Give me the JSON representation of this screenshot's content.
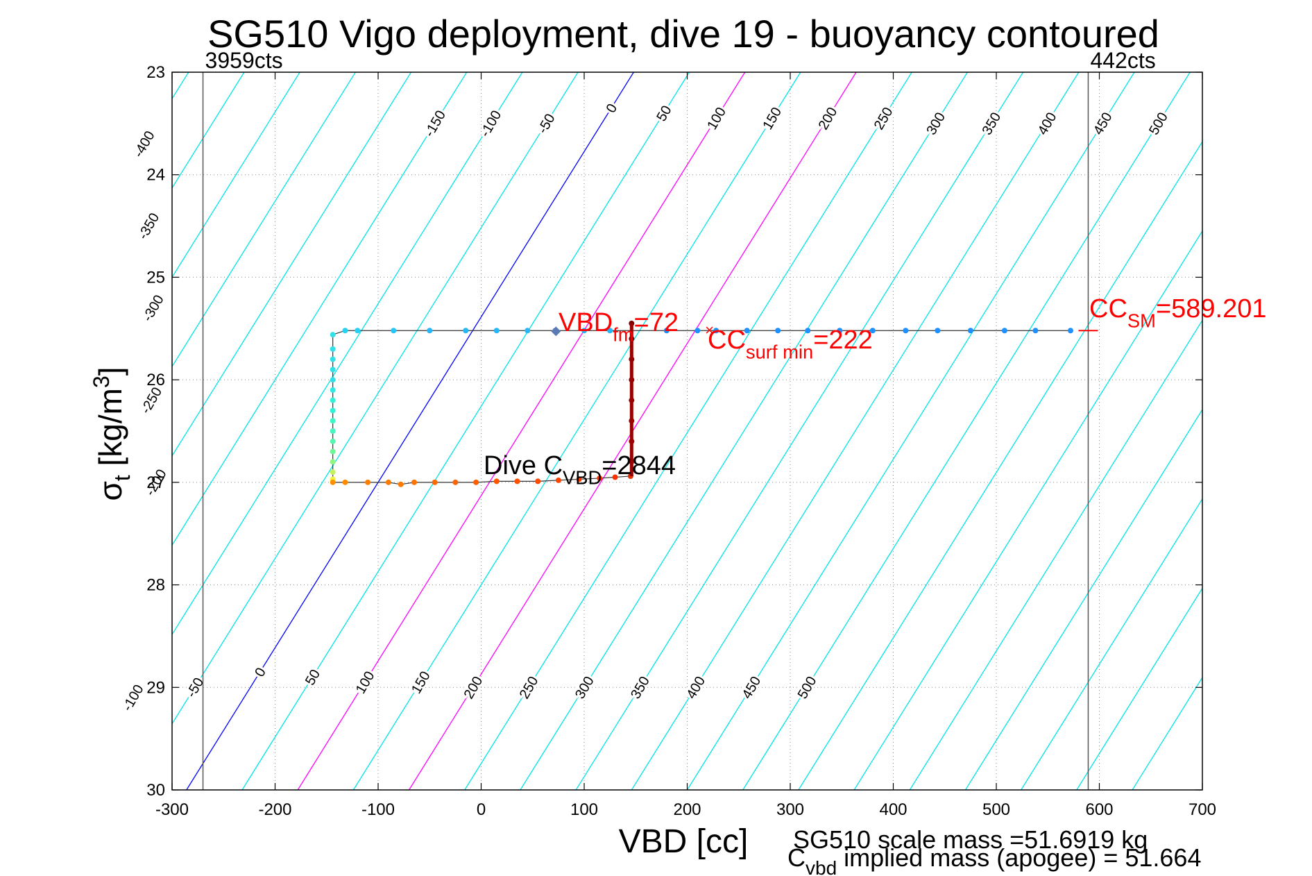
{
  "chart_data": {
    "type": "line",
    "title": "SG510 Vigo deployment, dive 19 - buoyancy contoured",
    "xlabel": "VBD [cc]",
    "ylabel_main": "σ",
    "ylabel_sub": "t",
    "ylabel_units": " [kg/m",
    "ylabel_sup": "3",
    "ylabel_close": "]",
    "xlim": [
      -300,
      700
    ],
    "ylim": [
      23,
      30
    ],
    "y_reversed": true,
    "grid": true,
    "xticks": [
      -300,
      -200,
      -100,
      0,
      100,
      200,
      300,
      400,
      500,
      600,
      700
    ],
    "yticks": [
      23,
      24,
      25,
      26,
      27,
      28,
      29,
      30
    ],
    "xtick_labels": [
      "-300",
      "-200",
      "-100",
      "0",
      "100",
      "200",
      "300",
      "400",
      "500",
      "600",
      "700"
    ],
    "ytick_labels": [
      "23",
      "24",
      "25",
      "26",
      "27",
      "28",
      "29",
      "30"
    ],
    "contours": {
      "slope_cc_per_sigma": 24,
      "levels": [
        -400,
        -350,
        -300,
        -250,
        -200,
        -150,
        -100,
        -50,
        0,
        50,
        100,
        150,
        200,
        250,
        300,
        350,
        400,
        450,
        500
      ],
      "zero_vbd_at_sigma23": 148,
      "highlight_zero": "#0000ff",
      "highlight_magenta": [
        100,
        200
      ],
      "color": "#00e5e5",
      "top_labels": [
        {
          "level": -400,
          "sigma": 23.7
        },
        {
          "level": -150,
          "sigma": 23.5
        },
        {
          "level": -100,
          "sigma": 23.5
        },
        {
          "level": -50,
          "sigma": 23.5
        },
        {
          "level": 0,
          "sigma": 23.35
        },
        {
          "level": 50,
          "sigma": 23.4
        },
        {
          "level": 100,
          "sigma": 23.45
        },
        {
          "level": 150,
          "sigma": 23.45
        },
        {
          "level": 200,
          "sigma": 23.45
        },
        {
          "level": 250,
          "sigma": 23.45
        },
        {
          "level": 300,
          "sigma": 23.5
        },
        {
          "level": 350,
          "sigma": 23.5
        },
        {
          "level": 400,
          "sigma": 23.5
        },
        {
          "level": 450,
          "sigma": 23.5
        },
        {
          "level": 500,
          "sigma": 23.5
        },
        {
          "level": -350,
          "sigma": 24.5
        },
        {
          "level": -300,
          "sigma": 25.3
        },
        {
          "level": -250,
          "sigma": 26.2
        },
        {
          "level": -200,
          "sigma": 27.0
        }
      ],
      "bottom_labels": [
        {
          "level": -100,
          "sigma": 29.1
        },
        {
          "level": -50,
          "sigma": 29.0
        },
        {
          "level": 0,
          "sigma": 28.85
        },
        {
          "level": 50,
          "sigma": 28.9
        },
        {
          "level": 100,
          "sigma": 28.95
        },
        {
          "level": 150,
          "sigma": 28.95
        },
        {
          "level": 200,
          "sigma": 29.0
        },
        {
          "level": 250,
          "sigma": 29.0
        },
        {
          "level": 300,
          "sigma": 29.0
        },
        {
          "level": 350,
          "sigma": 29.0
        },
        {
          "level": 400,
          "sigma": 29.0
        },
        {
          "level": 450,
          "sigma": 29.0
        },
        {
          "level": 500,
          "sigma": 29.0
        }
      ]
    },
    "vertical_lines": [
      {
        "x": -270,
        "label": "3959cts"
      },
      {
        "x": 589.201,
        "label": "442cts"
      }
    ],
    "series": [
      {
        "name": "dive trace",
        "points": [
          [
            572,
            25.52,
            "#1e90ff"
          ],
          [
            538,
            25.52,
            "#1e90ff"
          ],
          [
            508,
            25.52,
            "#1e90ff"
          ],
          [
            475,
            25.52,
            "#1e90ff"
          ],
          [
            443,
            25.52,
            "#1e90ff"
          ],
          [
            412,
            25.52,
            "#1e90ff"
          ],
          [
            380,
            25.52,
            "#1e90ff"
          ],
          [
            348,
            25.52,
            "#1e90ff"
          ],
          [
            317,
            25.52,
            "#1e90ff"
          ],
          [
            288,
            25.52,
            "#1e90ff"
          ],
          [
            258,
            25.52,
            "#1e90ff"
          ],
          [
            228,
            25.52,
            "#1e90ff"
          ],
          [
            210,
            25.52,
            "#1e90ff"
          ],
          [
            180,
            25.52,
            "#1e90ff"
          ],
          [
            125,
            25.52,
            "#29b6f6"
          ],
          [
            100,
            25.52,
            "#29b6f6"
          ],
          [
            72,
            25.52,
            "#3a7bd5"
          ],
          [
            45,
            25.52,
            "#29b6f6"
          ],
          [
            15,
            25.52,
            "#29b6f6"
          ],
          [
            -15,
            25.52,
            "#29b6f6"
          ],
          [
            -50,
            25.52,
            "#29b6f6"
          ],
          [
            -85,
            25.52,
            "#29c5f6"
          ],
          [
            -120,
            25.52,
            "#29d0f0"
          ],
          [
            -132,
            25.52,
            "#29d0f0"
          ],
          [
            -144,
            25.56,
            "#33e0e8"
          ],
          [
            -144,
            25.7,
            "#33e0e8"
          ],
          [
            -144,
            25.8,
            "#33e0e8"
          ],
          [
            -144,
            25.9,
            "#33e0e8"
          ],
          [
            -144,
            26.0,
            "#33e0e8"
          ],
          [
            -144,
            26.1,
            "#33e8e0"
          ],
          [
            -144,
            26.2,
            "#33f0d8"
          ],
          [
            -144,
            26.3,
            "#33f0d8"
          ],
          [
            -144,
            26.4,
            "#40f5c8"
          ],
          [
            -144,
            26.5,
            "#48f5c0"
          ],
          [
            -144,
            26.6,
            "#58f5b0"
          ],
          [
            -144,
            26.7,
            "#70f59a"
          ],
          [
            -144,
            26.8,
            "#90f585"
          ],
          [
            -144,
            26.9,
            "#c5f060"
          ],
          [
            -144,
            26.97,
            "#f0f040"
          ],
          [
            -144,
            27.0,
            "#ff9000"
          ],
          [
            -132,
            27.0,
            "#ff8c00"
          ],
          [
            -110,
            27.0,
            "#ff8000"
          ],
          [
            -90,
            27.0,
            "#ff7a00"
          ],
          [
            -78,
            27.02,
            "#ff7a00"
          ],
          [
            -65,
            27.0,
            "#ff7300"
          ],
          [
            -45,
            27.0,
            "#ff6a00"
          ],
          [
            -25,
            27.0,
            "#ff6400"
          ],
          [
            -5,
            27.0,
            "#ff5e00"
          ],
          [
            15,
            26.99,
            "#ff5500"
          ],
          [
            35,
            26.99,
            "#ff5000"
          ],
          [
            55,
            26.99,
            "#ff4a00"
          ],
          [
            75,
            26.98,
            "#ff4500"
          ],
          [
            95,
            26.97,
            "#ff3c00"
          ],
          [
            115,
            26.96,
            "#ff3500"
          ],
          [
            130,
            26.95,
            "#ff3000"
          ],
          [
            145,
            26.94,
            "#e63000"
          ],
          [
            146,
            26.8,
            "#cc1a00"
          ],
          [
            146,
            26.6,
            "#b80000"
          ],
          [
            146,
            26.4,
            "#aa0000"
          ],
          [
            146,
            26.2,
            "#a00000"
          ],
          [
            146,
            26.0,
            "#960000"
          ],
          [
            146,
            25.8,
            "#8b0000"
          ],
          [
            146,
            25.6,
            "#800000"
          ],
          [
            146,
            25.45,
            "#7a0000"
          ]
        ]
      }
    ],
    "annotations": {
      "vbd_fm": {
        "main": "VBD",
        "sub": "fm",
        "value": "=72",
        "x": 72,
        "y": 25.52,
        "color": "#ff0000"
      },
      "cc_surf_min": {
        "main": "CC",
        "sub": "surf min",
        "value": "=222",
        "x": 222,
        "y": 25.52,
        "color": "#ff0000"
      },
      "cc_sm": {
        "main": "CC",
        "sub": "SM",
        "value": "=589.201",
        "x": 589.201,
        "y": 25.52,
        "color": "#ff0000"
      },
      "dive_cvbd": {
        "main": "Dive C",
        "sub": "VBD",
        "value": "=2844",
        "color": "#000000"
      }
    },
    "footer": {
      "scale_mass": "SG510 scale mass =51.6919 kg",
      "implied_main": "C",
      "implied_sub": "vbd",
      "implied_rest": " implied mass (apogee) = 51.664"
    }
  }
}
